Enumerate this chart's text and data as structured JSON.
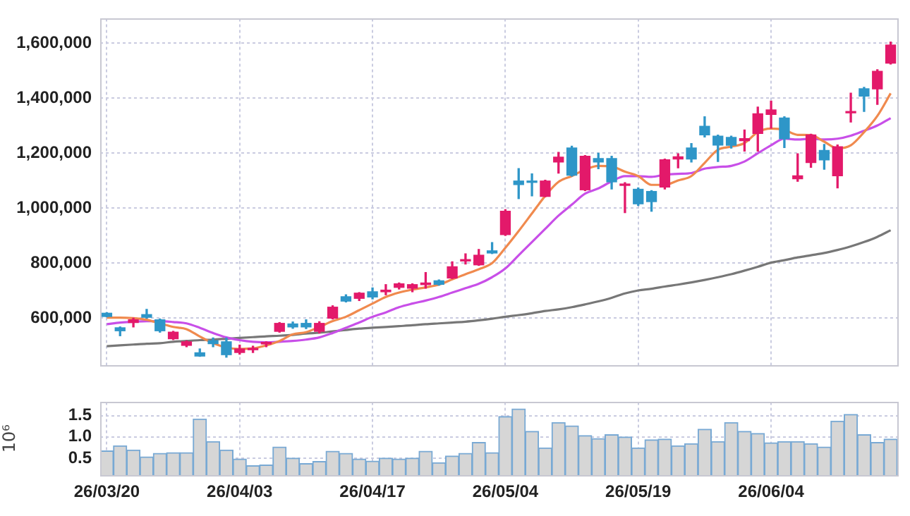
{
  "chart_data": [
    {
      "type": "candlestick",
      "categories": [
        null,
        null,
        null,
        null,
        null,
        null,
        null,
        null,
        null,
        null,
        null,
        null,
        null,
        null,
        null,
        null,
        null,
        null,
        null,
        null,
        null,
        null,
        null,
        null,
        null,
        null,
        null,
        null,
        null,
        null,
        null,
        null,
        null,
        null,
        null,
        null,
        null,
        null,
        null,
        null,
        null,
        null,
        null,
        null,
        null,
        null,
        null,
        null,
        null,
        null,
        null,
        null,
        null,
        null,
        null,
        null,
        null,
        null,
        null,
        null
      ],
      "ohlc": [
        [
          618000,
          620000,
          605000,
          606000
        ],
        [
          565000,
          568000,
          536000,
          554000
        ],
        [
          584000,
          600000,
          568000,
          594000
        ],
        [
          613000,
          632000,
          600000,
          603000
        ],
        [
          594000,
          597000,
          549000,
          554000
        ],
        [
          525000,
          552000,
          522000,
          549000
        ],
        [
          501000,
          517000,
          496000,
          514000
        ],
        [
          474000,
          488000,
          461000,
          462000
        ],
        [
          518000,
          528000,
          496000,
          507000
        ],
        [
          514000,
          528000,
          458000,
          467000
        ],
        [
          475000,
          502000,
          469000,
          488000
        ],
        [
          485000,
          498000,
          475000,
          490000
        ],
        [
          506000,
          514000,
          496000,
          512000
        ],
        [
          552000,
          584000,
          549000,
          581000
        ],
        [
          579000,
          586000,
          563000,
          568000
        ],
        [
          581000,
          594000,
          562000,
          568000
        ],
        [
          552000,
          587000,
          546000,
          581000
        ],
        [
          600000,
          645000,
          597000,
          640000
        ],
        [
          678000,
          685000,
          659000,
          662000
        ],
        [
          672000,
          693000,
          664000,
          691000
        ],
        [
          696000,
          710000,
          670000,
          677000
        ],
        [
          696000,
          722000,
          685000,
          702000
        ],
        [
          712000,
          728000,
          706000,
          725000
        ],
        [
          709000,
          725000,
          696000,
          722000
        ],
        [
          722000,
          766000,
          709000,
          728000
        ],
        [
          736000,
          739000,
          720000,
          723000
        ],
        [
          746000,
          805000,
          744000,
          787000
        ],
        [
          808000,
          834000,
          797000,
          813000
        ],
        [
          794000,
          850000,
          792000,
          829000
        ],
        [
          845000,
          875000,
          835000,
          837000
        ],
        [
          904000,
          995000,
          901000,
          989000
        ],
        [
          1099000,
          1144000,
          1035000,
          1086000
        ],
        [
          1099000,
          1125000,
          1045000,
          1094000
        ],
        [
          1043000,
          1102000,
          1042000,
          1099000
        ],
        [
          1168000,
          1203000,
          1128000,
          1186000
        ],
        [
          1219000,
          1226000,
          1117000,
          1120000
        ],
        [
          1067000,
          1192000,
          1064000,
          1189000
        ],
        [
          1181000,
          1200000,
          1144000,
          1168000
        ],
        [
          1181000,
          1189000,
          1070000,
          1096000
        ],
        [
          1083000,
          1093000,
          984000,
          1088000
        ],
        [
          1069000,
          1074000,
          1010000,
          1016000
        ],
        [
          1061000,
          1064000,
          989000,
          1024000
        ],
        [
          1077000,
          1179000,
          1070000,
          1176000
        ],
        [
          1179000,
          1198000,
          1147000,
          1187000
        ],
        [
          1219000,
          1235000,
          1168000,
          1179000
        ],
        [
          1298000,
          1333000,
          1259000,
          1267000
        ],
        [
          1262000,
          1266000,
          1170000,
          1230000
        ],
        [
          1258000,
          1262000,
          1219000,
          1229000
        ],
        [
          1246000,
          1285000,
          1208000,
          1253000
        ],
        [
          1272000,
          1368000,
          1208000,
          1344000
        ],
        [
          1341000,
          1390000,
          1291000,
          1358000
        ],
        [
          1328000,
          1333000,
          1221000,
          1253000
        ],
        [
          1107000,
          1198000,
          1098000,
          1118000
        ],
        [
          1166000,
          1269000,
          1149000,
          1267000
        ],
        [
          1210000,
          1232000,
          1142000,
          1176000
        ],
        [
          1118000,
          1230000,
          1074000,
          1224000
        ],
        [
          1347000,
          1419000,
          1314000,
          1352000
        ],
        [
          1435000,
          1440000,
          1352000,
          1408000
        ],
        [
          1434000,
          1504000,
          1378000,
          1498000
        ],
        [
          1528000,
          1605000,
          1525000,
          1594000
        ]
      ],
      "colors": [
        "#2e96c8",
        "#2e96c8",
        "#e3196a",
        "#2e96c8",
        "#2e96c8",
        "#e3196a",
        "#e3196a",
        "#2e96c8",
        "#2e96c8",
        "#2e96c8",
        "#e3196a",
        "#e3196a",
        "#e3196a",
        "#e3196a",
        "#2e96c8",
        "#2e96c8",
        "#e3196a",
        "#e3196a",
        "#2e96c8",
        "#e3196a",
        "#2e96c8",
        "#e3196a",
        "#e3196a",
        "#e3196a",
        "#e3196a",
        "#2e96c8",
        "#e3196a",
        "#e3196a",
        "#e3196a",
        "#2e96c8",
        "#e3196a",
        "#2e96c8",
        "#2e96c8",
        "#e3196a",
        "#e3196a",
        "#2e96c8",
        "#e3196a",
        "#2e96c8",
        "#2e96c8",
        "#e3196a",
        "#2e96c8",
        "#2e96c8",
        "#e3196a",
        "#e3196a",
        "#2e96c8",
        "#2e96c8",
        "#2e96c8",
        "#2e96c8",
        "#e3196a",
        "#e3196a",
        "#e3196a",
        "#2e96c8",
        "#e3196a",
        "#e3196a",
        "#2e96c8",
        "#e3196a",
        "#e3196a",
        "#2e96c8",
        "#e3196a",
        "#e3196a"
      ],
      "series": [
        {
          "type": "line",
          "color": "#f08a4e",
          "values": [
            602000,
            602000,
            600000,
            594000,
            581000,
            568000,
            560000,
            533000,
            509000,
            493000,
            488000,
            490000,
            501000,
            517000,
            541000,
            549000,
            568000,
            589000,
            605000,
            629000,
            653000,
            677000,
            693000,
            704000,
            712000,
            722000,
            741000,
            760000,
            778000,
            800000,
            856000,
            917000,
            981000,
            1045000,
            1096000,
            1117000,
            1141000,
            1154000,
            1152000,
            1133000,
            1117000,
            1085000,
            1085000,
            1101000,
            1117000,
            1165000,
            1213000,
            1224000,
            1237000,
            1277000,
            1290000,
            1285000,
            1267000,
            1266000,
            1242000,
            1218000,
            1229000,
            1277000,
            1336000,
            1418000
          ]
        },
        {
          "type": "line",
          "color": "#c84fe8",
          "values": [
            578000,
            584000,
            587000,
            589000,
            589000,
            586000,
            581000,
            565000,
            546000,
            530000,
            520000,
            514000,
            512000,
            514000,
            517000,
            522000,
            530000,
            546000,
            565000,
            584000,
            605000,
            621000,
            640000,
            653000,
            664000,
            677000,
            693000,
            709000,
            725000,
            749000,
            781000,
            829000,
            877000,
            925000,
            973000,
            1013000,
            1053000,
            1072000,
            1098000,
            1117000,
            1117000,
            1114000,
            1122000,
            1125000,
            1128000,
            1144000,
            1150000,
            1154000,
            1170000,
            1200000,
            1229000,
            1253000,
            1250000,
            1253000,
            1250000,
            1253000,
            1264000,
            1282000,
            1301000,
            1328000
          ]
        },
        {
          "type": "line",
          "color": "#777777",
          "values": [
            498000,
            501000,
            504000,
            507000,
            509000,
            514000,
            517000,
            520000,
            522000,
            525000,
            528000,
            531000,
            534000,
            536000,
            539000,
            544000,
            547000,
            552000,
            557000,
            562000,
            565000,
            568000,
            571000,
            574000,
            578000,
            581000,
            584000,
            587000,
            592000,
            598000,
            605000,
            611000,
            618000,
            626000,
            632000,
            640000,
            650000,
            661000,
            674000,
            690000,
            701000,
            707000,
            715000,
            722000,
            730000,
            739000,
            749000,
            760000,
            773000,
            787000,
            802000,
            811000,
            821000,
            829000,
            837000,
            848000,
            861000,
            877000,
            896000,
            920000
          ]
        }
      ],
      "ylim": [
        430000,
        1690000
      ],
      "yticks": [
        {
          "value": 600000,
          "label": "600,000"
        },
        {
          "value": 800000,
          "label": "800,000"
        },
        {
          "value": 1000000,
          "label": "1,000,000"
        },
        {
          "value": 1200000,
          "label": "1,200,000"
        },
        {
          "value": 1400000,
          "label": "1,400,000"
        },
        {
          "value": 1600000,
          "label": "1,600,000"
        }
      ],
      "tick_labels": "y",
      "grid": true,
      "marker": "none"
    },
    {
      "type": "bar",
      "categories": [
        "26/03/20",
        null,
        null,
        null,
        null,
        null,
        null,
        null,
        null,
        null,
        "26/04/03",
        null,
        null,
        null,
        null,
        null,
        null,
        null,
        null,
        null,
        "26/04/17",
        null,
        null,
        null,
        null,
        null,
        null,
        null,
        null,
        null,
        "26/05/04",
        null,
        null,
        null,
        null,
        null,
        null,
        null,
        null,
        null,
        "26/05/19",
        null,
        null,
        null,
        null,
        null,
        null,
        null,
        null,
        null,
        "26/06/04",
        null,
        null,
        null,
        null,
        null,
        null,
        null,
        null,
        null
      ],
      "values": [
        0.67,
        0.79,
        0.69,
        0.53,
        0.61,
        0.63,
        0.63,
        1.42,
        0.89,
        0.69,
        0.48,
        0.32,
        0.34,
        0.76,
        0.5,
        0.37,
        0.42,
        0.66,
        0.61,
        0.48,
        0.43,
        0.5,
        0.48,
        0.5,
        0.66,
        0.39,
        0.55,
        0.61,
        0.87,
        0.63,
        1.48,
        1.66,
        1.13,
        0.74,
        1.34,
        1.26,
        1.03,
        0.96,
        1.05,
        1.0,
        0.74,
        0.93,
        0.95,
        0.79,
        0.84,
        1.18,
        0.89,
        1.34,
        1.13,
        1.08,
        0.86,
        0.89,
        0.89,
        0.84,
        0.76,
        1.37,
        1.53,
        1.05,
        0.87,
        0.95
      ],
      "color": "#d6d6d6",
      "ylabel": "10⁶",
      "ylim": [
        0.1,
        1.82
      ],
      "yticks": [
        0.5,
        {
          "value": 1,
          "label": "1.0"
        },
        1.5
      ],
      "grid": true
    }
  ]
}
